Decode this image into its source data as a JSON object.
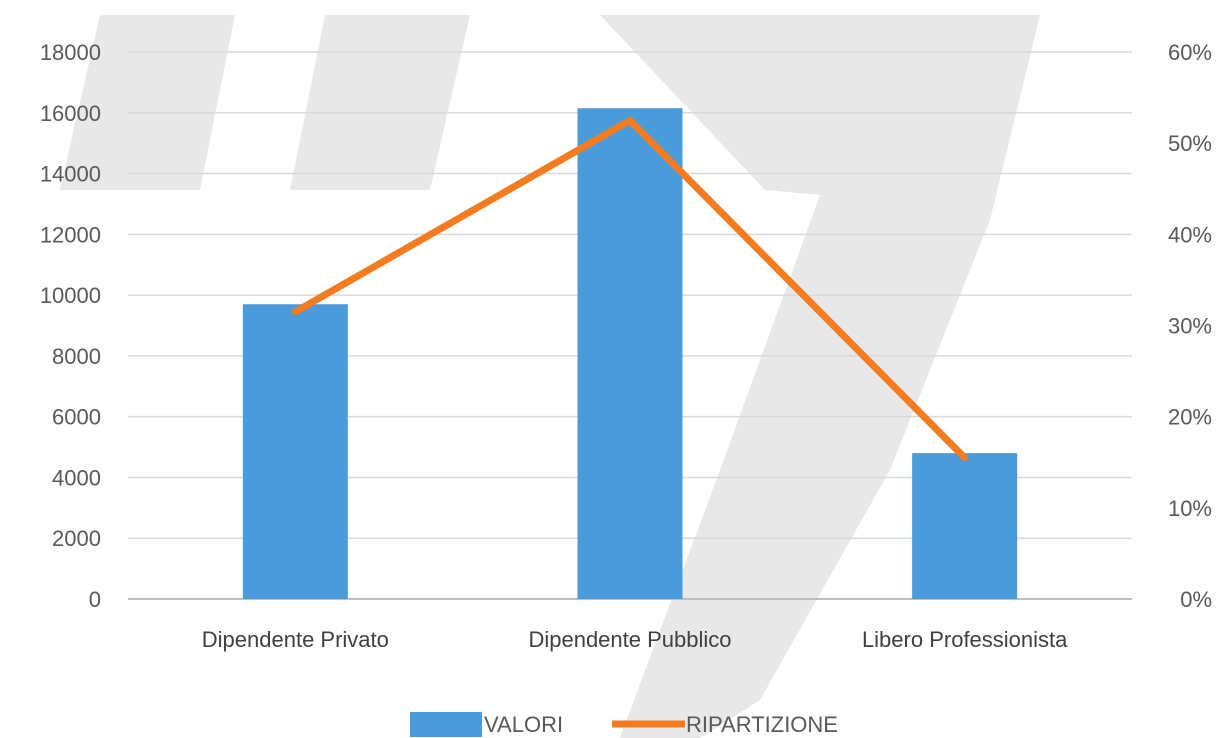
{
  "chart_data": {
    "type": "bar",
    "categories": [
      "Dipendente Privato",
      "Dipendente Pubblico",
      "Libero Professionista"
    ],
    "series": [
      {
        "name": "VALORI",
        "type": "bar",
        "axis": "left",
        "values": [
          9700,
          16150,
          4800
        ],
        "color": "#4A9BD9"
      },
      {
        "name": "RIPARTIZIONE",
        "type": "line",
        "axis": "right",
        "values": [
          0.315,
          0.525,
          0.155
        ],
        "color": "#F47B20"
      }
    ],
    "ylim_left": [
      0,
      18000
    ],
    "yticks_left": [
      "0",
      "2000",
      "4000",
      "6000",
      "8000",
      "10000",
      "12000",
      "14000",
      "16000",
      "18000"
    ],
    "ylim_right": [
      0,
      0.6
    ],
    "yticks_right": [
      "0%",
      "10%",
      "20%",
      "30%",
      "40%",
      "50%",
      "60%"
    ],
    "grid": true,
    "legend_position": "bottom",
    "title": "",
    "xlabel": "",
    "ylabel": ""
  }
}
